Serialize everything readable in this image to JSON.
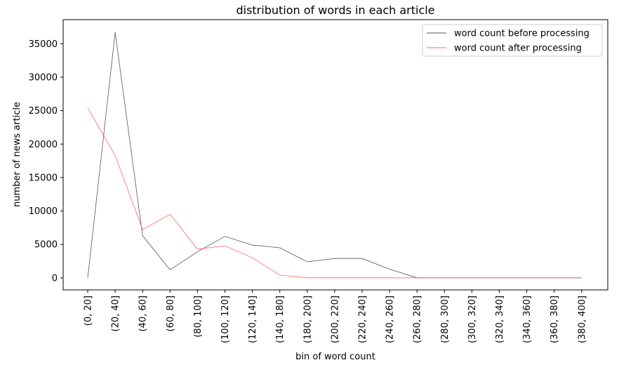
{
  "chart_data": {
    "type": "line",
    "title": "distribution of words in each article",
    "xlabel": "bin of word count",
    "ylabel": "number of news article",
    "categories": [
      "(0, 20]",
      "(20, 40]",
      "(40, 60]",
      "(60, 80]",
      "(80, 100]",
      "(100, 120]",
      "(120, 140]",
      "(140, 180]",
      "(180, 200]",
      "(200, 220]",
      "(220, 240]",
      "(240, 260]",
      "(260, 280]",
      "(280, 300]",
      "(300, 320]",
      "(320, 340]",
      "(340, 360]",
      "(360, 380]",
      "(380, 400]"
    ],
    "series": [
      {
        "name": "word count before processing",
        "color": "#555555",
        "values": [
          0,
          36700,
          6300,
          1200,
          3900,
          6200,
          4900,
          4500,
          2400,
          2900,
          2900,
          1300,
          0,
          0,
          0,
          0,
          0,
          0,
          0
        ]
      },
      {
        "name": "word count after processing",
        "color": "#ff6666",
        "values": [
          25400,
          18300,
          7200,
          9500,
          4300,
          4800,
          3000,
          400,
          0,
          0,
          0,
          0,
          0,
          0,
          0,
          0,
          0,
          0,
          0
        ]
      }
    ],
    "yticks": [
      0,
      5000,
      10000,
      15000,
      20000,
      25000,
      30000,
      35000
    ],
    "ylim": [
      -1800,
      38600
    ],
    "grid": false,
    "legend": "upper-right"
  }
}
